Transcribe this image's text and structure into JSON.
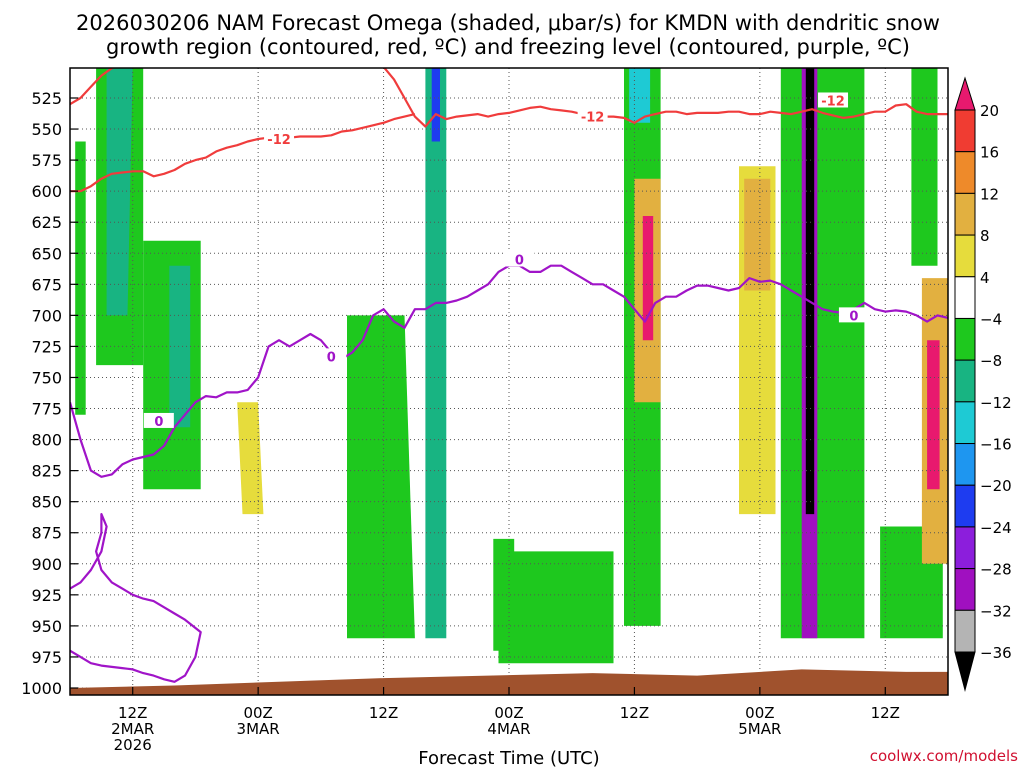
{
  "chart_data": {
    "type": "heatmap",
    "title_lines": [
      "2026030206 NAM Forecast Omega (shaded, μbar/s) for KMDN with dendritic snow",
      "growth region (contoured, red, ºC) and freezing level (contoured, purple, ºC)"
    ],
    "xlabel": "Forecast Time (UTC)",
    "credit": "coolwx.com/models",
    "y_axis": {
      "quantity": "pressure (hPa)",
      "inverted": true,
      "range": [
        1000,
        500
      ],
      "ticks": [
        525,
        550,
        575,
        600,
        625,
        650,
        675,
        700,
        725,
        750,
        775,
        800,
        825,
        850,
        875,
        900,
        925,
        950,
        975,
        1000
      ]
    },
    "x_axis": {
      "quantity": "forecast hour",
      "range": [
        0,
        84
      ],
      "grid": "dotted",
      "ticks": [
        {
          "hour": 6,
          "lines": [
            "12Z",
            "2MAR",
            "2026"
          ]
        },
        {
          "hour": 18,
          "lines": [
            "00Z",
            "3MAR"
          ]
        },
        {
          "hour": 30,
          "lines": [
            "12Z"
          ]
        },
        {
          "hour": 42,
          "lines": [
            "00Z",
            "4MAR"
          ]
        },
        {
          "hour": 54,
          "lines": [
            "12Z"
          ]
        },
        {
          "hour": 66,
          "lines": [
            "00Z",
            "5MAR"
          ]
        },
        {
          "hour": 78,
          "lines": [
            "12Z"
          ]
        }
      ]
    },
    "y_grid": "dotted",
    "colorbar": {
      "labels": [
        "20",
        "16",
        "12",
        "8",
        "4",
        "−4",
        "−8",
        "−12",
        "−16",
        "−20",
        "−24",
        "−28",
        "−32",
        "−36"
      ],
      "colors": [
        "#e8196e",
        "#f03c32",
        "#ee8a2a",
        "#e2b040",
        "#e6dc3c",
        "#ffffff",
        "#1ec81e",
        "#18b482",
        "#1ecad4",
        "#1e96f0",
        "#1e3cf0",
        "#8c1edc",
        "#a010c0",
        "#b4b4b4",
        "#000000"
      ]
    },
    "omega_features": [
      {
        "x": [
          0.5,
          1.5,
          1.5,
          0.5
        ],
        "p": [
          560,
          560,
          780,
          780
        ],
        "value": -6
      },
      {
        "x": [
          2.5,
          7.0,
          7.0,
          2.5
        ],
        "p": [
          490,
          490,
          740,
          740
        ],
        "value": -6
      },
      {
        "x": [
          3.5,
          6.0,
          5.5,
          3.5
        ],
        "p": [
          500,
          500,
          700,
          700
        ],
        "value": -10
      },
      {
        "x": [
          7.0,
          12.5,
          12.5,
          7.0
        ],
        "p": [
          640,
          640,
          840,
          840
        ],
        "value": -6
      },
      {
        "x": [
          9.5,
          11.5,
          11.5,
          9.5
        ],
        "p": [
          660,
          660,
          790,
          790
        ],
        "value": -10
      },
      {
        "x": [
          16.0,
          18.0,
          18.5,
          16.5
        ],
        "p": [
          770,
          770,
          860,
          860
        ],
        "value": 5
      },
      {
        "x": [
          26.5,
          32.0,
          33.0,
          26.5
        ],
        "p": [
          700,
          700,
          960,
          960
        ],
        "value": -6
      },
      {
        "x": [
          34.0,
          36.0,
          36.0,
          34.0
        ],
        "p": [
          490,
          490,
          960,
          960
        ],
        "value": -8
      },
      {
        "x": [
          34.6,
          35.4,
          35.4,
          34.6
        ],
        "p": [
          490,
          490,
          560,
          560
        ],
        "value": -22
      },
      {
        "x": [
          40.5,
          42.5,
          42.5,
          40.5
        ],
        "p": [
          880,
          880,
          970,
          970
        ],
        "value": -6
      },
      {
        "x": [
          41.0,
          52.0,
          52.0,
          41.0
        ],
        "p": [
          890,
          890,
          980,
          980
        ],
        "value": -6
      },
      {
        "x": [
          53.0,
          56.5,
          56.5,
          53.0
        ],
        "p": [
          500,
          500,
          950,
          950
        ],
        "value": -6
      },
      {
        "x": [
          53.5,
          55.5,
          55.5,
          53.5
        ],
        "p": [
          500,
          500,
          545,
          545
        ],
        "value": -14
      },
      {
        "x": [
          54.0,
          56.5,
          56.5,
          54.0
        ],
        "p": [
          590,
          590,
          770,
          770
        ],
        "value": 10
      },
      {
        "x": [
          54.8,
          55.8,
          55.8,
          54.8
        ],
        "p": [
          620,
          620,
          720,
          720
        ],
        "value": 20
      },
      {
        "x": [
          64.0,
          67.5,
          67.5,
          64.0
        ],
        "p": [
          580,
          580,
          860,
          860
        ],
        "value": 6
      },
      {
        "x": [
          64.5,
          67.0,
          67.0,
          64.5
        ],
        "p": [
          590,
          590,
          680,
          680
        ],
        "value": 10
      },
      {
        "x": [
          68.0,
          76.0,
          76.0,
          68.0
        ],
        "p": [
          490,
          490,
          960,
          960
        ],
        "value": -6
      },
      {
        "x": [
          70.0,
          71.5,
          71.5,
          70.0
        ],
        "p": [
          490,
          490,
          960,
          960
        ],
        "value": -30
      },
      {
        "x": [
          70.4,
          71.2,
          71.2,
          70.4
        ],
        "p": [
          490,
          490,
          860,
          860
        ],
        "value": -40
      },
      {
        "x": [
          77.5,
          83.5,
          83.5,
          77.5
        ],
        "p": [
          870,
          870,
          960,
          960
        ],
        "value": -6
      },
      {
        "x": [
          80.5,
          83.0,
          83.0,
          80.5
        ],
        "p": [
          490,
          490,
          660,
          660
        ],
        "value": -6
      },
      {
        "x": [
          81.5,
          84.0,
          84.0,
          81.5
        ],
        "p": [
          670,
          670,
          900,
          900
        ],
        "value": 8
      },
      {
        "x": [
          82.0,
          83.2,
          83.2,
          82.0
        ],
        "p": [
          720,
          720,
          840,
          840
        ],
        "value": 20
      }
    ],
    "contours": [
      {
        "label": "-12",
        "color": "#f03c3c",
        "x": [
          0.0,
          1.0,
          2.0,
          3.0,
          4.0,
          5.0,
          6.0,
          7.0,
          8.0,
          9.0,
          10.0,
          11.0,
          12.0,
          13.0,
          14.0,
          15.0,
          16.0,
          17.0,
          18.0,
          19.0,
          20.0,
          21.0,
          22.0,
          23.0,
          24.0,
          25.0,
          26.0,
          27.0,
          28.0,
          29.0,
          30.0,
          31.0,
          32.0,
          33.0,
          34.0,
          35.0,
          36.0,
          37.0,
          38.0,
          39.0,
          40.0,
          41.0,
          42.0,
          43.0,
          44.0,
          45.0,
          46.0,
          47.0,
          48.0,
          49.0,
          50.0,
          51.0,
          52.0,
          53.0,
          54.0,
          55.0,
          56.0,
          57.0,
          58.0,
          59.0,
          60.0,
          61.0,
          62.0,
          63.0,
          64.0,
          65.0,
          66.0,
          67.0,
          68.0,
          69.0,
          70.0,
          71.0,
          72.0,
          73.0,
          74.0,
          75.0,
          76.0,
          77.0,
          78.0,
          79.0,
          80.0,
          81.0,
          82.0,
          83.0,
          84.0
        ],
        "p": [
          530,
          525,
          516,
          507,
          501,
          498,
          497,
          497,
          499,
          500,
          500,
          500,
          500,
          498,
          497,
          496,
          495,
          494,
          493,
          495,
          493,
          492,
          493,
          495,
          494,
          494,
          495,
          496,
          497,
          498,
          500,
          510,
          525,
          540,
          548,
          538,
          542,
          540,
          539,
          538,
          540,
          538,
          537,
          535,
          533,
          532,
          534,
          535,
          536,
          538,
          537,
          540,
          540,
          541,
          545,
          540,
          538,
          536,
          536,
          538,
          537,
          537,
          537,
          536,
          536,
          538,
          538,
          536,
          537,
          538,
          536,
          534,
          537,
          539,
          541,
          540,
          538,
          536,
          536,
          531,
          530,
          536,
          538,
          538,
          538
        ],
        "labels": [
          {
            "x": 50,
            "p": 540
          },
          {
            "x": 73,
            "p": 527
          }
        ]
      },
      {
        "label": "-12",
        "color": "#f03c3c",
        "x": [
          0.0,
          1.0,
          2.0,
          3.0,
          4.0,
          5.0,
          6.0,
          7.0,
          8.0,
          9.0,
          10.0,
          11.0,
          12.0,
          13.0,
          14.0,
          15.0,
          16.0,
          17.0,
          18.0,
          19.0,
          20.0,
          21.0,
          22.0,
          23.0,
          24.0,
          25.0,
          26.0,
          27.0,
          28.0,
          29.0,
          30.0,
          31.0,
          32.0,
          33.0
        ],
        "p": [
          600,
          600,
          596,
          590,
          586,
          585,
          584,
          584,
          588,
          586,
          583,
          578,
          575,
          573,
          568,
          565,
          563,
          560,
          558,
          557,
          557,
          557,
          556,
          556,
          556,
          555,
          552,
          551,
          549,
          547,
          545,
          542,
          540,
          538
        ],
        "labels": [
          {
            "x": 20,
            "p": 558
          }
        ]
      },
      {
        "label": "0",
        "color": "#a014c8",
        "x": [
          0.0,
          1.0,
          2.0,
          3.0,
          4.0,
          5.0,
          6.0,
          7.0,
          8.0,
          9.0,
          10.0,
          11.0,
          12.0,
          13.0,
          14.0,
          15.0,
          16.0,
          17.0,
          18.0,
          19.0,
          20.0,
          21.0,
          22.0,
          23.0,
          24.0,
          25.0,
          26.0,
          27.0,
          28.0,
          29.0,
          30.0,
          31.0,
          32.0,
          33.0,
          34.0,
          35.0,
          36.0,
          37.0,
          38.0,
          39.0,
          40.0,
          41.0,
          42.0,
          43.0,
          44.0,
          45.0,
          46.0,
          47.0,
          48.0,
          49.0,
          50.0,
          51.0,
          52.0,
          53.0,
          54.0,
          55.0,
          56.0,
          57.0,
          58.0,
          59.0,
          60.0,
          61.0,
          62.0,
          63.0,
          64.0,
          65.0,
          66.0,
          67.0,
          68.0,
          69.0,
          70.0,
          71.0,
          72.0,
          73.0,
          74.0,
          75.0,
          76.0,
          77.0,
          78.0,
          79.0,
          80.0,
          81.0,
          82.0,
          83.0,
          84.0
        ],
        "p": [
          770,
          800,
          825,
          830,
          828,
          820,
          816,
          814,
          812,
          805,
          790,
          780,
          770,
          765,
          766,
          762,
          762,
          760,
          750,
          725,
          720,
          725,
          720,
          715,
          720,
          730,
          735,
          730,
          720,
          700,
          695,
          705,
          710,
          695,
          695,
          690,
          690,
          688,
          685,
          680,
          675,
          665,
          660,
          660,
          665,
          665,
          660,
          660,
          665,
          670,
          675,
          675,
          680,
          685,
          695,
          705,
          690,
          685,
          685,
          680,
          676,
          676,
          678,
          680,
          678,
          670,
          673,
          672,
          675,
          680,
          685,
          690,
          695,
          697,
          698,
          695,
          690,
          695,
          697,
          696,
          697,
          700,
          705,
          700,
          702
        ],
        "labels": [
          {
            "x": 8.5,
            "p": 785
          },
          {
            "x": 25.0,
            "p": 733
          },
          {
            "x": 43.0,
            "p": 655
          },
          {
            "x": 75.0,
            "p": 700
          }
        ]
      },
      {
        "label": "0",
        "color": "#a014c8",
        "x": [
          0.0,
          1.0,
          2.0,
          3.0,
          3.5,
          3.0,
          3.0,
          2.5,
          3.0,
          4.0,
          5.0,
          6.0,
          7.0,
          8.0,
          9.0,
          10.0,
          11.0,
          12.5,
          12.0,
          11.0,
          10.0,
          9.0,
          8.0,
          7.0,
          6.0,
          5.0,
          4.0,
          3.0,
          2.0,
          1.0,
          0.0
        ],
        "p": [
          920,
          915,
          905,
          890,
          870,
          860,
          875,
          890,
          905,
          915,
          920,
          925,
          928,
          930,
          935,
          940,
          945,
          955,
          975,
          990,
          995,
          993,
          990,
          988,
          985,
          984,
          983,
          982,
          980,
          975,
          970
        ],
        "labels": []
      }
    ],
    "terrain": {
      "color": "#a0522d",
      "x": [
        0,
        10,
        20,
        30,
        40,
        50,
        60,
        70,
        80,
        84
      ],
      "p": [
        1000,
        998,
        995,
        992,
        990,
        988,
        990,
        985,
        987,
        987
      ]
    }
  }
}
